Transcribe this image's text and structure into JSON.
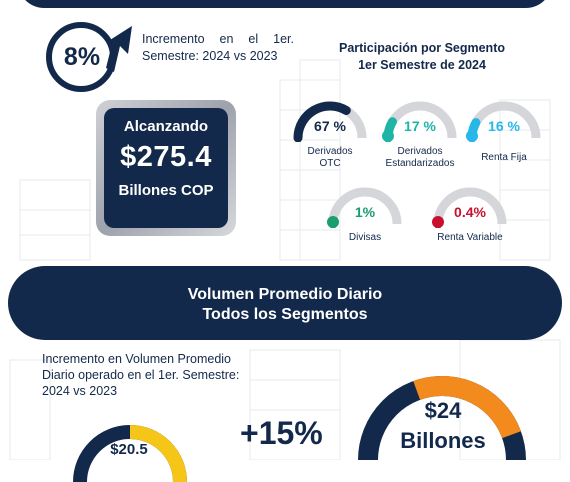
{
  "header": {
    "increment_pct": "8%",
    "increment_line1": [
      "Incremento",
      "en",
      "el",
      "1er."
    ],
    "increment_line2": "Semestre: 2024 vs  2023"
  },
  "reach": {
    "label": "Alcanzando",
    "value": "$275.4",
    "unit": "Billones COP"
  },
  "participation": {
    "title_line1": "Participación por Segmento",
    "title_line2": "1er Semestre de 2024",
    "segments": [
      {
        "value": "67 %",
        "name_line1": "Derivados",
        "name_line2": "OTC",
        "share": 0.67,
        "color": "#13294b"
      },
      {
        "value": "17 %",
        "name_line1": "Derivados",
        "name_line2": "Estandarizados",
        "share": 0.17,
        "color": "#1fb5a5"
      },
      {
        "value": "16 %",
        "name_line1": "Renta Fija",
        "name_line2": "",
        "share": 0.16,
        "color": "#27b7e8"
      },
      {
        "value": "1%",
        "name_line1": "Divisas",
        "name_line2": "",
        "share": 0.01,
        "color": "#1a9e6e"
      },
      {
        "value": "0.4%",
        "name_line1": "Renta Variable",
        "name_line2": "",
        "share": 0.004,
        "color": "#c8102e"
      }
    ]
  },
  "volume": {
    "banner_line1": "Volumen Promedio Diario",
    "banner_line2": "Todos los Segmentos",
    "desc_line1": "Incremento en Volumen Promedio",
    "desc_line2": "Diario operado en el 1er. Semestre:",
    "desc_line3": "2024 vs  2023",
    "growth": "+15%",
    "prev_value": "$20.5",
    "curr_value": "$24",
    "curr_unit": "Billones"
  },
  "colors": {
    "navy": "#13294b",
    "orange": "#f28a1e",
    "yellow": "#f5c518",
    "track": "#d4d6da"
  }
}
